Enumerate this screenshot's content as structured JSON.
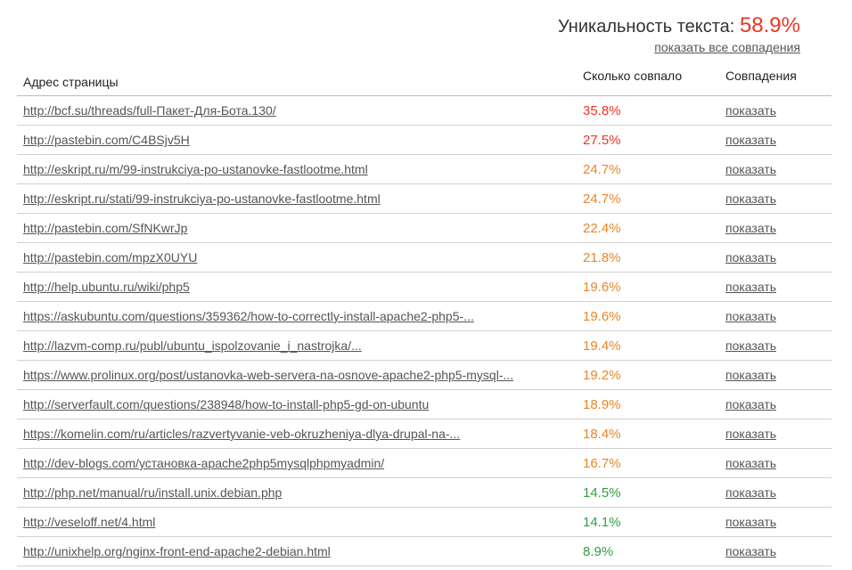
{
  "summary": {
    "label": "Уникальность текста:",
    "value": "58.9%",
    "show_all": "показать все совпадения"
  },
  "colors": {
    "high": "#ee3322",
    "medium": "#e8862a",
    "low": "#2ea043"
  },
  "table": {
    "headers": {
      "url": "Адрес страницы",
      "percent": "Сколько совпало",
      "matches": "Совпадения"
    },
    "rows": [
      {
        "url": "http://bcf.su/threads/full-Пакет-Для-Бота.130/",
        "percent": "35.8%",
        "level": "high",
        "action": "показать"
      },
      {
        "url": "http://pastebin.com/C4BSjv5H",
        "percent": "27.5%",
        "level": "high",
        "action": "показать"
      },
      {
        "url": "http://eskript.ru/m/99-instrukciya-po-ustanovke-fastlootme.html",
        "percent": "24.7%",
        "level": "medium",
        "action": "показать"
      },
      {
        "url": "http://eskript.ru/stati/99-instrukciya-po-ustanovke-fastlootme.html",
        "percent": "24.7%",
        "level": "medium",
        "action": "показать"
      },
      {
        "url": "http://pastebin.com/SfNKwrJp",
        "percent": "22.4%",
        "level": "medium",
        "action": "показать"
      },
      {
        "url": "http://pastebin.com/mpzX0UYU",
        "percent": "21.8%",
        "level": "medium",
        "action": "показать"
      },
      {
        "url": "http://help.ubuntu.ru/wiki/php5",
        "percent": "19.6%",
        "level": "medium",
        "action": "показать"
      },
      {
        "url": "https://askubuntu.com/questions/359362/how-to-correctly-install-apache2-php5-...",
        "percent": "19.6%",
        "level": "medium",
        "action": "показать"
      },
      {
        "url": "http://lazvm-comp.ru/publ/ubuntu_ispolzovanie_i_nastrojka/...",
        "percent": "19.4%",
        "level": "medium",
        "action": "показать"
      },
      {
        "url": "https://www.prolinux.org/post/ustanovka-web-servera-na-osnove-apache2-php5-mysql-...",
        "percent": "19.2%",
        "level": "medium",
        "action": "показать"
      },
      {
        "url": "http://serverfault.com/questions/238948/how-to-install-php5-gd-on-ubuntu",
        "percent": "18.9%",
        "level": "medium",
        "action": "показать"
      },
      {
        "url": "https://komelin.com/ru/articles/razvertyvanie-veb-okruzheniya-dlya-drupal-na-...",
        "percent": "18.4%",
        "level": "medium",
        "action": "показать"
      },
      {
        "url": "http://dev-blogs.com/установка-apache2php5mysqlphpmyadmin/",
        "percent": "16.7%",
        "level": "medium",
        "action": "показать"
      },
      {
        "url": "http://php.net/manual/ru/install.unix.debian.php",
        "percent": "14.5%",
        "level": "low",
        "action": "показать"
      },
      {
        "url": "http://veseloff.net/4.html",
        "percent": "14.1%",
        "level": "low",
        "action": "показать"
      },
      {
        "url": "http://unixhelp.org/nginx-front-end-apache2-debian.html",
        "percent": "8.9%",
        "level": "low",
        "action": "показать"
      }
    ]
  }
}
